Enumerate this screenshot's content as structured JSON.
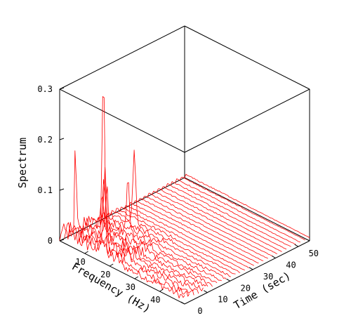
{
  "chart_data": {
    "type": "waterfall",
    "z_axis": {
      "label": "Spectrum",
      "range": [
        0,
        0.3
      ],
      "ticks": [
        {
          "value": 0,
          "label": "0"
        },
        {
          "value": 0.1,
          "label": "0.1"
        },
        {
          "value": 0.2,
          "label": "0.2"
        },
        {
          "value": 0.3,
          "label": "0.3"
        }
      ]
    },
    "frequency_axis": {
      "label": "Frequency (Hz)",
      "range": [
        0,
        50
      ],
      "ticks": [
        {
          "value": 10,
          "label": "10"
        },
        {
          "value": 20,
          "label": "20"
        },
        {
          "value": 30,
          "label": "30"
        },
        {
          "value": 40,
          "label": "40"
        }
      ]
    },
    "time_axis": {
      "label": "Time (sec)",
      "range": [
        0,
        55
      ],
      "ticks": [
        {
          "value": 0,
          "label": "0"
        },
        {
          "value": 10,
          "label": "10"
        },
        {
          "value": 20,
          "label": "20"
        },
        {
          "value": 30,
          "label": "30"
        },
        {
          "value": 40,
          "label": "40"
        },
        {
          "value": 50,
          "label": "50"
        }
      ]
    },
    "series_count": 28,
    "series_color": "#ff0000",
    "peaks": [
      {
        "time": 0,
        "frequency": 17.5,
        "value": 0.36
      },
      {
        "time": 4,
        "frequency": 14.5,
        "value": 0.16
      },
      {
        "time": 8,
        "frequency": 11.5,
        "value": 0.12
      },
      {
        "time": 10,
        "frequency": 8.5,
        "value": 0.12
      },
      {
        "time": 12,
        "frequency": 6,
        "value": 0.08
      },
      {
        "time": 6,
        "frequency": 0.5,
        "value": 0.17
      },
      {
        "time": 16,
        "frequency": 12.5,
        "value": 0.14
      },
      {
        "time": 22,
        "frequency": 9.5,
        "value": 0.22
      }
    ]
  }
}
